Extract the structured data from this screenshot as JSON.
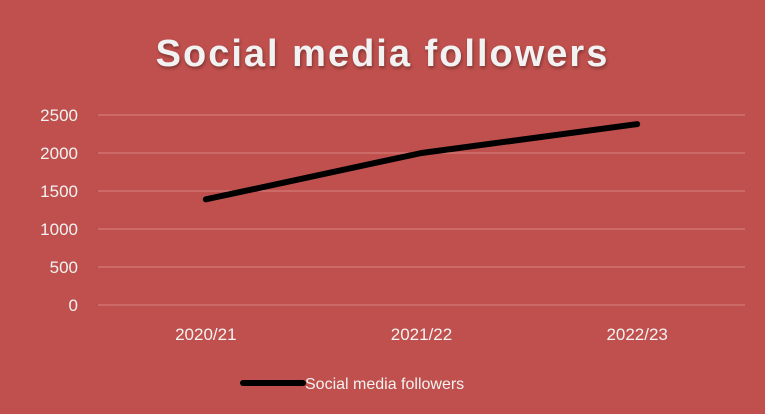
{
  "colors": {
    "background": "#c0504d",
    "gridline": "#d98582",
    "series": "#000000",
    "text": "#f2f2f2"
  },
  "chart_data": {
    "type": "line",
    "title": "Social media followers",
    "categories": [
      "2020/21",
      "2021/22",
      "2022/23"
    ],
    "series": [
      {
        "name": "Social media followers",
        "values": [
          1390,
          2000,
          2380
        ]
      }
    ],
    "ylim": [
      0,
      2500
    ],
    "yticks": [
      "0",
      "500",
      "1000",
      "1500",
      "2000",
      "2500"
    ],
    "grid": true,
    "legend": "bottom"
  }
}
